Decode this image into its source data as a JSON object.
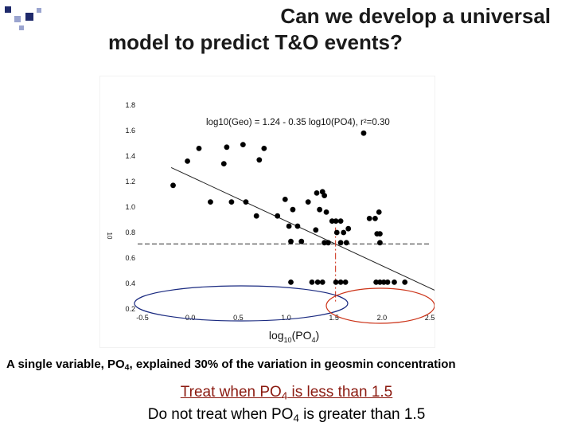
{
  "slide": {
    "title_line1": "Can we develop a universal",
    "title_line2": "model to predict T&O events?",
    "caption": {
      "pre": "A single variable, PO",
      "sub": "4",
      "post": ", explained 30% of the variation in geosmin concentration"
    },
    "note1": {
      "pre": "Treat when PO",
      "sub": "4",
      "post": " is less than 1.5"
    },
    "note2": {
      "pre": "Do not treat when PO",
      "sub": "4",
      "post": " is greater than 1.5"
    }
  },
  "colors": {
    "title": "#1a1a1a",
    "bullet_dark": "#1f2a6b",
    "bullet_light": "#9aa4cf",
    "treat_text": "#8b1a10",
    "ellipse_left": "#1a2a80",
    "ellipse_right": "#cc3318",
    "dropline": "#cc2a12",
    "threshold_line": "#555555"
  },
  "chart_data": {
    "type": "scatter",
    "xlabel": "log10(PO4)",
    "ylabel": "10",
    "equation": "log10(Geo) = 1.24 - 0.35 log10(PO4), r²=0.30",
    "xlim": [
      -0.55,
      2.55
    ],
    "ylim": [
      0.2,
      1.8
    ],
    "x_ticks": [
      "-0.5",
      "0.0",
      "0.5",
      "1.0",
      "1.5",
      "2.0",
      "2.5"
    ],
    "y_ticks": [
      "0.2",
      "0.4",
      "0.6",
      "0.8",
      "1.0",
      "1.2",
      "1.4",
      "1.6",
      "1.8"
    ],
    "regression": {
      "intercept": 1.24,
      "slope": -0.35,
      "r2": 0.3
    },
    "threshold_y": 0.71,
    "threshold_x": 1.5,
    "points": [
      [
        -0.18,
        1.17
      ],
      [
        -0.03,
        1.36
      ],
      [
        0.09,
        1.46
      ],
      [
        0.38,
        1.47
      ],
      [
        0.35,
        1.34
      ],
      [
        0.55,
        1.49
      ],
      [
        0.77,
        1.46
      ],
      [
        0.72,
        1.37
      ],
      [
        0.21,
        1.04
      ],
      [
        0.43,
        1.04
      ],
      [
        0.58,
        1.04
      ],
      [
        0.69,
        0.93
      ],
      [
        0.91,
        0.93
      ],
      [
        0.99,
        1.06
      ],
      [
        1.07,
        0.98
      ],
      [
        1.03,
        0.85
      ],
      [
        1.12,
        0.85
      ],
      [
        1.05,
        0.73
      ],
      [
        1.16,
        0.73
      ],
      [
        1.23,
        1.04
      ],
      [
        1.32,
        1.11
      ],
      [
        1.38,
        1.12
      ],
      [
        1.4,
        1.09
      ],
      [
        1.35,
        0.98
      ],
      [
        1.42,
        0.96
      ],
      [
        1.48,
        0.89
      ],
      [
        1.52,
        0.89
      ],
      [
        1.57,
        0.89
      ],
      [
        1.53,
        0.8
      ],
      [
        1.6,
        0.8
      ],
      [
        1.4,
        0.72
      ],
      [
        1.57,
        0.72
      ],
      [
        1.63,
        0.72
      ],
      [
        1.31,
        0.82
      ],
      [
        1.65,
        0.83
      ],
      [
        1.81,
        1.58
      ],
      [
        1.87,
        0.91
      ],
      [
        1.93,
        0.91
      ],
      [
        1.97,
        0.96
      ],
      [
        1.95,
        0.79
      ],
      [
        1.98,
        0.79
      ],
      [
        1.98,
        0.72
      ],
      [
        1.44,
        0.72
      ],
      [
        1.05,
        0.41
      ],
      [
        1.27,
        0.41
      ],
      [
        1.33,
        0.41
      ],
      [
        1.38,
        0.41
      ],
      [
        1.52,
        0.41
      ],
      [
        1.57,
        0.41
      ],
      [
        1.62,
        0.41
      ],
      [
        1.94,
        0.41
      ],
      [
        1.98,
        0.41
      ],
      [
        2.02,
        0.41
      ],
      [
        2.06,
        0.41
      ],
      [
        2.13,
        0.41
      ],
      [
        2.24,
        0.41
      ]
    ]
  }
}
